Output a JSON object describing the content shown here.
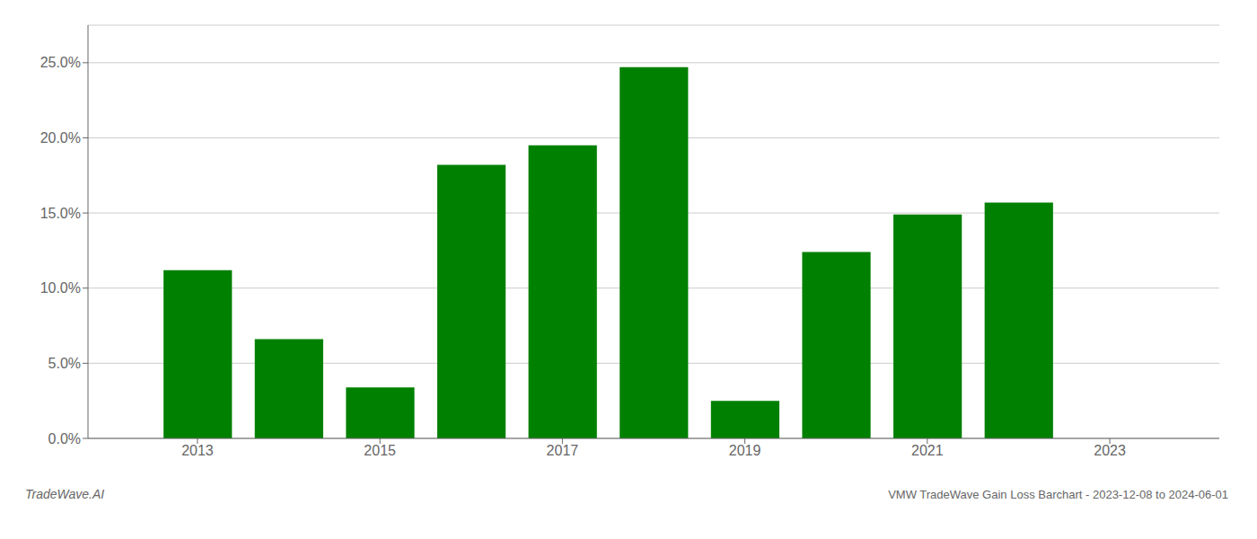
{
  "chart_data": {
    "type": "bar",
    "x": [
      2013,
      2014,
      2015,
      2016,
      2017,
      2018,
      2019,
      2020,
      2021,
      2022
    ],
    "values": [
      0.112,
      0.066,
      0.034,
      0.182,
      0.195,
      0.247,
      0.025,
      0.124,
      0.149,
      0.157
    ],
    "color": "#008000",
    "xlim": [
      2011.8,
      2024.2
    ],
    "xticks": [
      2013,
      2015,
      2017,
      2019,
      2021,
      2023
    ],
    "ylim": [
      0,
      0.275
    ],
    "yticks": [
      {
        "value": 0.0,
        "label": "0.0%"
      },
      {
        "value": 0.05,
        "label": "5.0%"
      },
      {
        "value": 0.1,
        "label": "10.0%"
      },
      {
        "value": 0.15,
        "label": "15.0%"
      },
      {
        "value": 0.2,
        "label": "20.0%"
      },
      {
        "value": 0.25,
        "label": "25.0%"
      }
    ],
    "grid": true,
    "annotations": [
      "TradeWave.AI",
      "VMW TradeWave Gain Loss Barchart - 2023-12-08 to 2024-06-01"
    ]
  }
}
